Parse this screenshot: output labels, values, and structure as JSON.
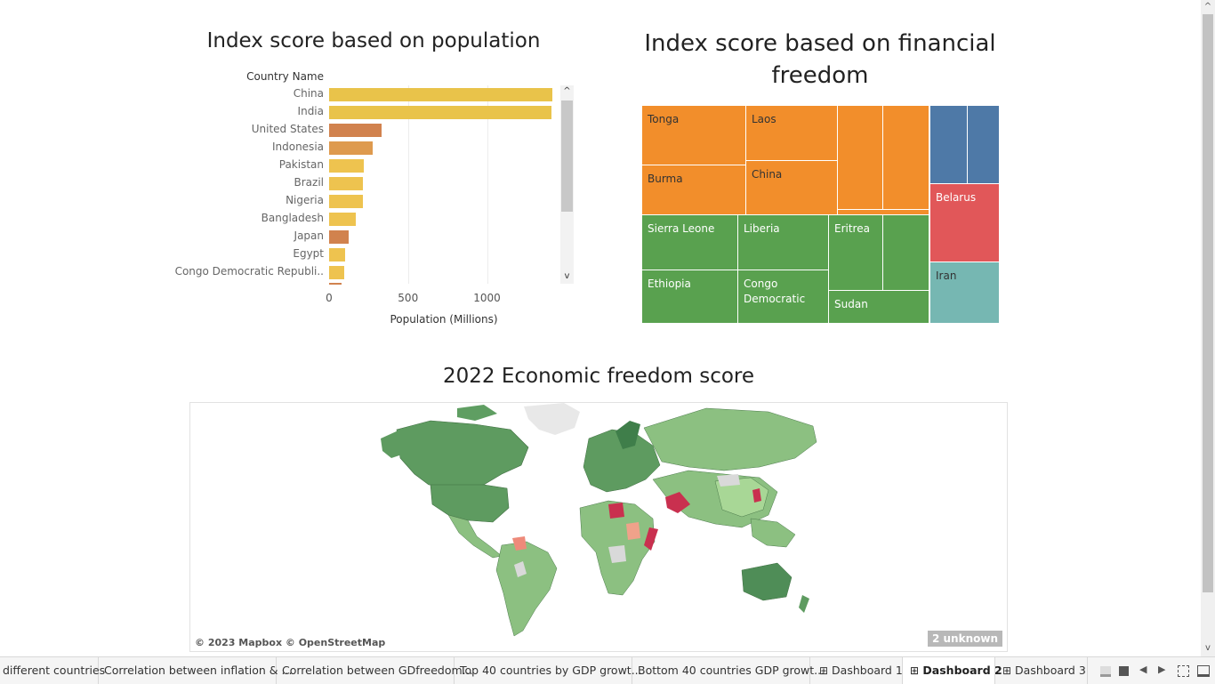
{
  "bar_chart": {
    "title": "Index score based on population",
    "column_header": "Country Name",
    "xlabel": "Population (Millions)",
    "ticks": [
      "0",
      "500",
      "1000"
    ]
  },
  "treemap": {
    "title_line1": "Index score based on financial",
    "title_line2": "freedom",
    "labels": {
      "tonga": "Tonga",
      "laos": "Laos",
      "burma": "Burma",
      "china": "China",
      "belarus": "Belarus",
      "iran": "Iran",
      "sierra_leone": "Sierra Leone",
      "liberia": "Liberia",
      "eritrea": "Eritrea",
      "ethiopia": "Ethiopia",
      "congo": "Congo Democratic",
      "sudan": "Sudan"
    },
    "colors": {
      "orange": "#f28e2b",
      "green": "#59a14f",
      "blue": "#4e79a7",
      "red": "#e15759",
      "teal": "#76b7b2"
    }
  },
  "map": {
    "title": "2022 Economic freedom score",
    "attribution": "© 2023 Mapbox © OpenStreetMap",
    "unknown_badge": "2 unknown"
  },
  "tabs": [
    "different countries",
    "Correlation between inflation & ...",
    "Correlation between GDfreedom...",
    "Top 40 countries by GDP growt...",
    "Bottom 40 countries GDP growt...",
    "Dashboard 1",
    "Dashboard 2",
    "Dashboard 3"
  ],
  "chart_data": {
    "type": "bar",
    "categories": [
      "China",
      "India",
      "United States",
      "Indonesia",
      "Pakistan",
      "Brazil",
      "Nigeria",
      "Bangladesh",
      "Japan",
      "Egypt",
      "Congo Democratic Republi.."
    ],
    "values": [
      1412,
      1408,
      332,
      274,
      220,
      214,
      213,
      169,
      125,
      104,
      95
    ],
    "colors": [
      "#e9c34a",
      "#e9c34a",
      "#d1824e",
      "#de9a4e",
      "#eec34f",
      "#eec34f",
      "#eec34f",
      "#eec34f",
      "#d1824e",
      "#eec34f",
      "#eec34f"
    ],
    "xlabel": "Population (Millions)",
    "xlim": [
      0,
      1500
    ]
  }
}
